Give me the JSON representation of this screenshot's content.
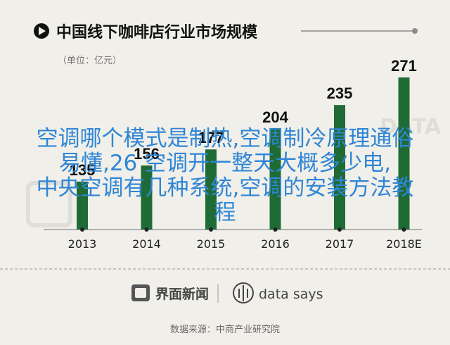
{
  "header": {
    "title": "中国线下咖啡店行业市场规模",
    "unit": "（单位：亿元）"
  },
  "chart_data": {
    "type": "bar",
    "title": "中国线下咖啡店行业市场规模",
    "ylabel": "（单位：亿元）",
    "categories": [
      "2013",
      "2014",
      "2015",
      "2016",
      "2017",
      "2018E"
    ],
    "values": [
      135,
      156,
      177,
      204,
      235,
      271
    ],
    "value_labels": [
      "135",
      "156",
      "177",
      "204",
      "235",
      "271"
    ],
    "ylim": [
      0,
      280
    ],
    "grid": false,
    "legend": "none",
    "colors": {
      "bar": "#1f6b36",
      "axis": "#9a9a9a",
      "dot": "#222222",
      "text": "#111111"
    }
  },
  "overlay": {
    "lines": [
      "空调哪个模式是制热,空调制冷原理通俗",
      "易懂,26 空调开一整天大概多少电,",
      "中央空调有几种系统,空调的安装方法教",
      "程"
    ]
  },
  "footer": {
    "brand_label": "界面新闻",
    "data_says_label": "data says",
    "source": "数据来源：中商产业研究院"
  },
  "watermark": {
    "text": "DATA SAYS"
  },
  "colors": {
    "background": "#f1efe9",
    "title_text": "#111111",
    "muted": "#8a8a8a",
    "overlay": "#2f86d6"
  }
}
